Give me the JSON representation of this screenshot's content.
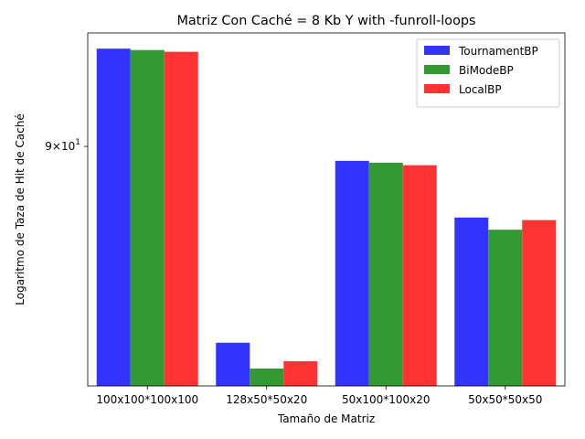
{
  "chart_data": {
    "type": "bar",
    "title": "Matriz Con Caché = 8 Kb Y  with -funroll-loops",
    "xlabel": "Tamaño de Matriz",
    "ylabel": "Logaritmo de Taza de Hit de Caché",
    "yscale": "log",
    "ylim": [
      83.6,
      93.2
    ],
    "y_tick": {
      "value": 90,
      "label_base": "9",
      "label_mid": "×10",
      "label_exp": "1"
    },
    "categories": [
      "100x100*100x100",
      "128x50*50x20",
      "50x100*100x20",
      "50x50*50x50"
    ],
    "series": [
      {
        "name": "TournamentBP",
        "color": "#3333ff",
        "values": [
          92.75,
          84.72,
          89.6,
          88.05
        ]
      },
      {
        "name": "BiModeBP",
        "color": "#339933",
        "values": [
          92.71,
          84.05,
          89.55,
          87.72
        ]
      },
      {
        "name": "LocalBP",
        "color": "#ff3333",
        "values": [
          92.66,
          84.24,
          89.48,
          87.98
        ]
      }
    ],
    "legend_position": "top-right",
    "grid": false
  }
}
